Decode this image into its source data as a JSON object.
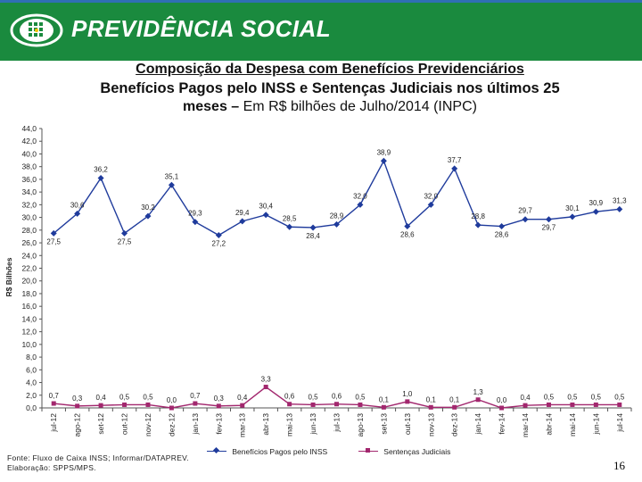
{
  "header": {
    "brand": "PREVIDÊNCIA SOCIAL",
    "bg_color": "#1a8a3e",
    "logo_icon": "previdencia-logo-icon"
  },
  "title": {
    "line1": "Composição da Despesa com Benefícios Previdenciários",
    "line2": "Benefícios Pagos pelo INSS e Sentenças Judiciais nos últimos 25",
    "line3_bold": "meses –",
    "line3_rest": " Em R$ bilhões de Julho/2014 (INPC)"
  },
  "chart_data": {
    "type": "line",
    "ylabel": "R$ Bilhões",
    "ylim": [
      0,
      44
    ],
    "ytick_step": 2,
    "ytick_labels": [
      "0,0",
      "2,0",
      "4,0",
      "6,0",
      "8,0",
      "10,0",
      "12,0",
      "14,0",
      "16,0",
      "18,0",
      "20,0",
      "22,0",
      "24,0",
      "26,0",
      "28,0",
      "30,0",
      "32,0",
      "34,0",
      "36,0",
      "38,0",
      "40,0",
      "42,0",
      "44,0"
    ],
    "grid": false,
    "legend_position": "bottom",
    "categories": [
      "jul-12",
      "ago-12",
      "set-12",
      "out-12",
      "nov-12",
      "dez-12",
      "jan-13",
      "fev-13",
      "mar-13",
      "abr-13",
      "mai-13",
      "jun-13",
      "jul-13",
      "ago-13",
      "set-13",
      "out-13",
      "nov-13",
      "dez-13",
      "jan-14",
      "fev-14",
      "mar-14",
      "abr-14",
      "mai-14",
      "jun-14",
      "jul-14"
    ],
    "series": [
      {
        "name": "Benefícios Pagos pelo INSS",
        "color": "#1f3b9c",
        "marker": "diamond",
        "values": [
          27.5,
          30.6,
          36.2,
          27.5,
          30.2,
          35.1,
          29.3,
          27.2,
          29.4,
          30.4,
          28.5,
          28.4,
          28.9,
          32.0,
          38.9,
          28.6,
          32.0,
          37.7,
          28.8,
          28.6,
          29.7,
          29.7,
          30.1,
          30.9,
          31.3
        ],
        "labels": [
          "27,5",
          "30,6",
          "36,2",
          "27,5",
          "30,2",
          "35,1",
          "29,3",
          "27,2",
          "29,4",
          "30,4",
          "28,5",
          "28,4",
          "28,9",
          "32,0",
          "38,9",
          "28,6",
          "32,0",
          "37,7",
          "28,8",
          "28,6",
          "29,7",
          "29,7",
          "30,1",
          "30,9",
          "31,3"
        ]
      },
      {
        "name": "Sentenças Judiciais",
        "color": "#a2276e",
        "marker": "square",
        "values": [
          0.7,
          0.3,
          0.4,
          0.5,
          0.5,
          0.0,
          0.7,
          0.3,
          0.4,
          3.3,
          0.6,
          0.5,
          0.6,
          0.5,
          0.1,
          1.0,
          0.1,
          0.1,
          1.3,
          0.0,
          0.4,
          0.5,
          0.5,
          0.5,
          0.5
        ],
        "labels": [
          "0,7",
          "0,3",
          "0,4",
          "0,5",
          "0,5",
          "0,0",
          "0,7",
          "0,3",
          "0,4",
          "3,3",
          "0,6",
          "0,5",
          "0,6",
          "0,5",
          "0,1",
          "1,0",
          "0,1",
          "0,1",
          "1,3",
          "0,0",
          "0,4",
          "0,5",
          "0,5",
          "0,5",
          "0,5"
        ]
      }
    ]
  },
  "footer": {
    "source": "Fonte: Fluxo de Caixa INSS; Informar/DATAPREV.",
    "credit": "Elaboração: SPPS/MPS.",
    "page_number": "16"
  }
}
